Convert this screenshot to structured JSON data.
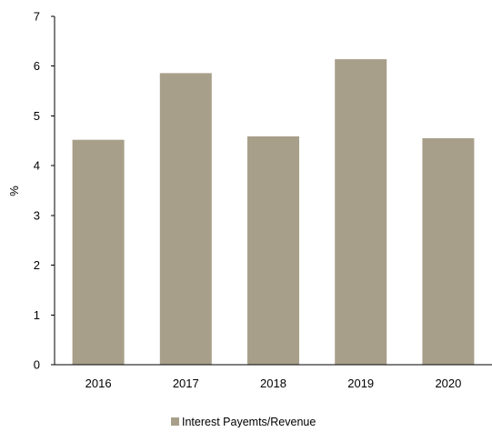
{
  "chart_data": {
    "type": "bar",
    "categories": [
      "2016",
      "2017",
      "2018",
      "2019",
      "2020"
    ],
    "series": [
      {
        "name": "Interest Payemts/Revenue",
        "values": [
          4.52,
          5.86,
          4.59,
          6.14,
          4.55
        ]
      }
    ],
    "title": "",
    "xlabel": "",
    "ylabel": "%",
    "ylim": [
      0,
      7
    ],
    "yticks": [
      0,
      1,
      2,
      3,
      4,
      5,
      6,
      7
    ],
    "grid": false,
    "legend_position": "bottom-center",
    "colors": {
      "bar": "#a89f8a",
      "axis": "#000000"
    }
  }
}
